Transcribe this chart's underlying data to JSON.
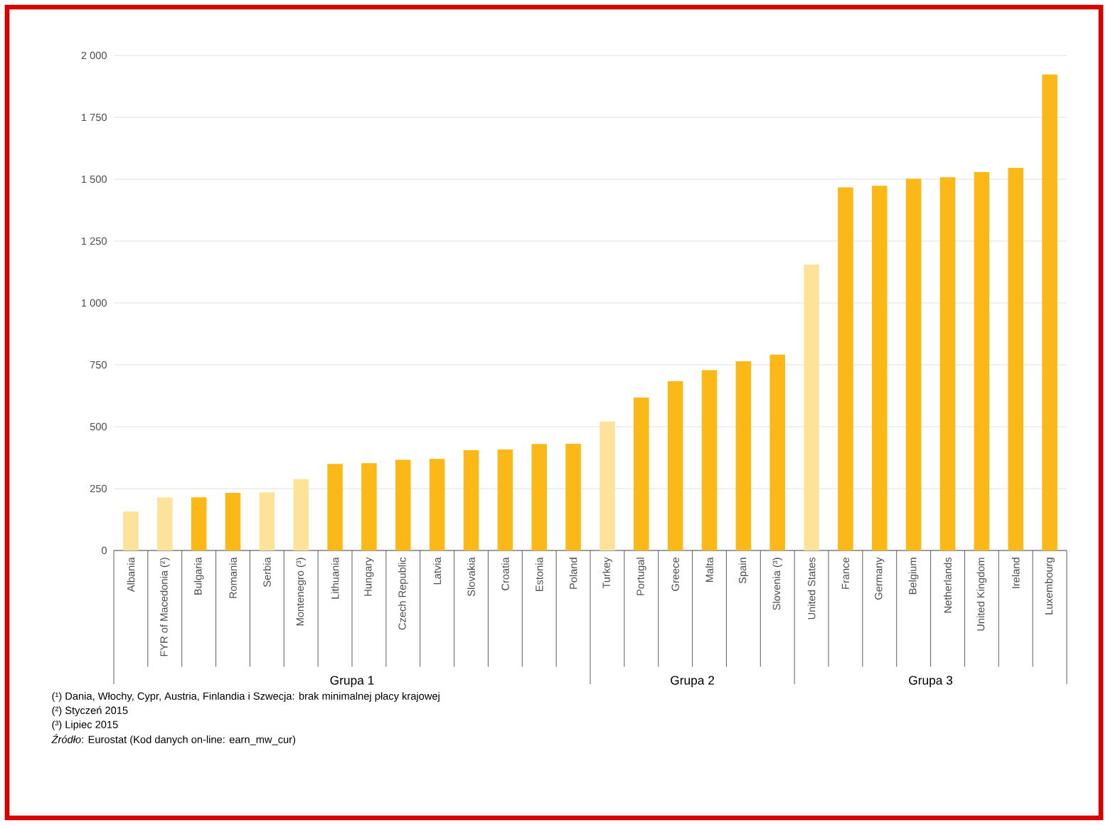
{
  "chart_data": {
    "type": "bar",
    "categories": [
      "Albania",
      "FYR of Macedonia (²)",
      "Bulgaria",
      "Romania",
      "Serbia",
      "Montenegro (³)",
      "Lithuania",
      "Hungary",
      "Czech Republic",
      "Latvia",
      "Slovakia",
      "Croatia",
      "Estonia",
      "Poland",
      "Turkey",
      "Portugal",
      "Greece",
      "Malta",
      "Spain",
      "Slovenia (³)",
      "United States",
      "France",
      "Germany",
      "Belgium",
      "Netherlands",
      "United Kingdom",
      "Ireland",
      "Luxembourg"
    ],
    "values": [
      157,
      214,
      215,
      233,
      235,
      288,
      350,
      353,
      366,
      370,
      405,
      408,
      430,
      431,
      521,
      618,
      684,
      728,
      764,
      791,
      1155,
      1467,
      1473,
      1502,
      1508,
      1529,
      1546,
      1923
    ],
    "colors": [
      "#fde39a",
      "#fde39a",
      "#fbb817",
      "#fbb817",
      "#fde39a",
      "#fde39a",
      "#fbb817",
      "#fbb817",
      "#fbb817",
      "#fbb817",
      "#fbb817",
      "#fbb817",
      "#fbb817",
      "#fbb817",
      "#fde39a",
      "#fbb817",
      "#fbb817",
      "#fbb817",
      "#fbb817",
      "#fbb817",
      "#fde39a",
      "#fbb817",
      "#fbb817",
      "#fbb817",
      "#fbb817",
      "#fbb817",
      "#fbb817",
      "#fbb817"
    ],
    "ylim": [
      0,
      2000
    ],
    "yticks": [
      0,
      250,
      500,
      750,
      {
        "value": 1000,
        "label": "1 000"
      },
      {
        "value": 1250,
        "label": "1 250"
      },
      {
        "value": 1500,
        "label": "1 500"
      },
      {
        "value": 1750,
        "label": "1 750"
      },
      {
        "value": 2000,
        "label": "2 000"
      }
    ],
    "grid": "y",
    "annotations": [
      "Grupa 1",
      "Grupa 2",
      "Grupa 3",
      "(¹) Dania, Włochy, Cypr, Austria, Finlandia i Szwecja: brak minimalnej płacy krajowej",
      "(²) Styczeń 2015",
      "(³) Lipiec 2015",
      "*Źródło*: Eurostat (Kod danych on-line: earn_mw_cur)"
    ]
  }
}
